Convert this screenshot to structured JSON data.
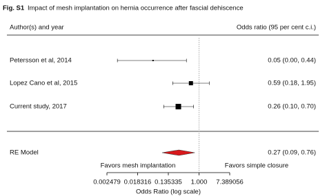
{
  "chart_data": {
    "type": "forest",
    "figure_label": "Fig. S1",
    "title": "Impact of mesh implantation on hernia occurrence after fascial dehiscence",
    "column_headers": [
      "Author(s) and year",
      "Odds ratio (95 per cent c.i.)"
    ],
    "categories": [
      "Petersson et al, 2014",
      "Lopez Cano et al, 2015",
      "Current study, 2017"
    ],
    "values": [
      0.05,
      0.59,
      0.26
    ],
    "lower": [
      0.0049,
      0.18,
      0.1
    ],
    "upper": [
      0.44,
      1.95,
      0.7
    ],
    "value_labels": [
      "0.05 (0.00, 0.44)",
      "0.59 (0.18, 1.95)",
      "0.26 (0.10, 0.70)"
    ],
    "color": "#000000",
    "summary": {
      "name": "RE Model",
      "value": 0.27,
      "lower": 0.09,
      "upper": 0.76,
      "value_label": "0.27 (0.09, 0.76)",
      "color": "#d7191c"
    },
    "annotations": [
      "Favors mesh implantation",
      "Favors simple closure"
    ],
    "xlabel": "Odds Ratio (log scale)",
    "xscale": "log",
    "xlim": [
      0.002479,
      7.389056
    ],
    "xticks": [
      0.002479,
      0.018316,
      0.135335,
      {
        "value": 1,
        "label": "1.000"
      },
      7.389056
    ],
    "reference_line": 1
  }
}
